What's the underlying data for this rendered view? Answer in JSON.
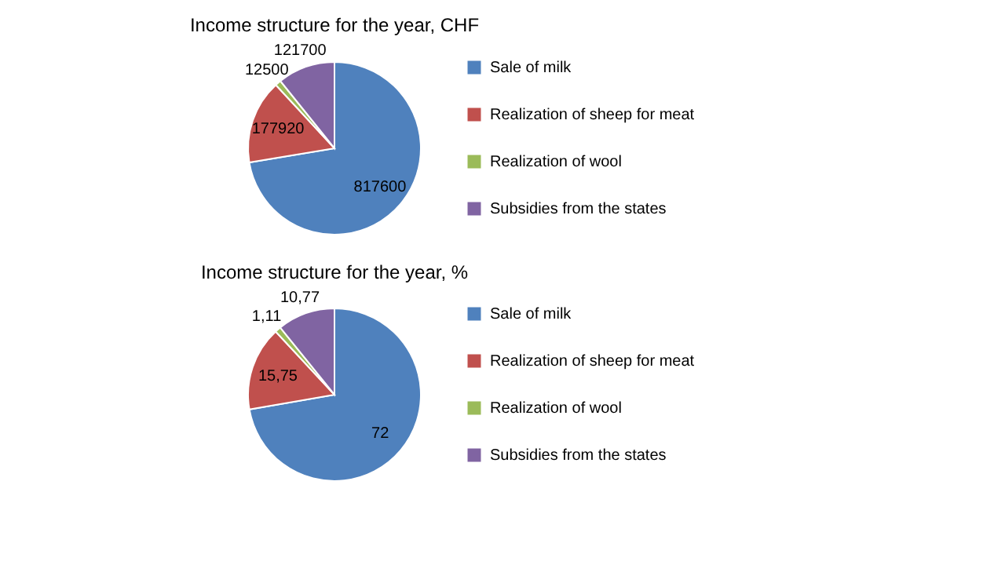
{
  "chart_data": [
    {
      "type": "pie",
      "title": "Income structure for the year, CHF",
      "categories": [
        "Sale of milk",
        "Realization of sheep for meat",
        "Realization of wool",
        "Subsidies from the states"
      ],
      "values": [
        817600,
        177920,
        12500,
        121700
      ],
      "colors": [
        "#4f81bd",
        "#c0504d",
        "#9bbb59",
        "#8064a2"
      ],
      "data_labels": true,
      "legend": "right"
    },
    {
      "type": "pie",
      "title": "Income structure for the year, %",
      "categories": [
        "Sale of milk",
        "Realization of sheep for meat",
        "Realization of wool",
        "Subsidies from the states"
      ],
      "values": [
        72,
        15.75,
        1.11,
        10.77
      ],
      "value_labels": [
        "72",
        "15,75",
        "1,11",
        "10,77"
      ],
      "colors": [
        "#4f81bd",
        "#c0504d",
        "#9bbb59",
        "#8064a2"
      ],
      "legend": "right"
    }
  ]
}
